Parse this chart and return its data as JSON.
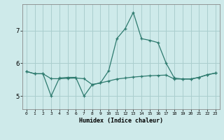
{
  "xlabel": "Humidex (Indice chaleur)",
  "ylabel": "",
  "background_color": "#ceeaea",
  "grid_color": "#aacece",
  "line_color": "#2d7a6e",
  "xlim": [
    -0.5,
    23.5
  ],
  "ylim": [
    4.6,
    7.8
  ],
  "yticks": [
    5,
    6,
    7
  ],
  "xticks": [
    0,
    1,
    2,
    3,
    4,
    5,
    6,
    7,
    8,
    9,
    10,
    11,
    12,
    13,
    14,
    15,
    16,
    17,
    18,
    19,
    20,
    21,
    22,
    23
  ],
  "series1_x": [
    0,
    1,
    2,
    3,
    4,
    5,
    6,
    7,
    8,
    9,
    10,
    11,
    12,
    13,
    14,
    15,
    16,
    17,
    18,
    19,
    20,
    21,
    22,
    23
  ],
  "series1_y": [
    5.75,
    5.68,
    5.68,
    5.0,
    5.55,
    5.57,
    5.57,
    5.0,
    5.35,
    5.4,
    5.77,
    6.75,
    7.05,
    7.55,
    6.75,
    6.7,
    6.63,
    6.0,
    5.55,
    5.52,
    5.52,
    5.57,
    5.65,
    5.7
  ],
  "series2_x": [
    0,
    1,
    2,
    3,
    4,
    5,
    6,
    7,
    8,
    9,
    10,
    11,
    12,
    13,
    14,
    15,
    16,
    17,
    18,
    19,
    20,
    21,
    22,
    23
  ],
  "series2_y": [
    5.75,
    5.68,
    5.68,
    5.53,
    5.53,
    5.54,
    5.55,
    5.53,
    5.35,
    5.4,
    5.46,
    5.52,
    5.55,
    5.58,
    5.6,
    5.62,
    5.63,
    5.64,
    5.52,
    5.52,
    5.52,
    5.57,
    5.65,
    5.7
  ]
}
